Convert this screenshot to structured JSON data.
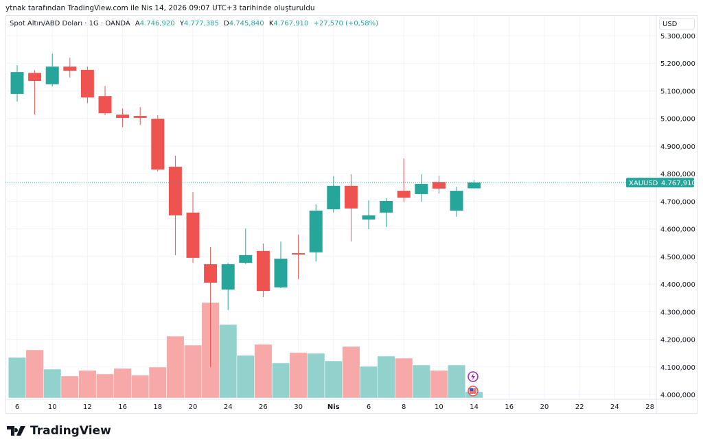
{
  "caption": "ytnak tarafından TradingView.com ile Nis 14, 2026 09:07 UTC+3 tarihinde oluşturuldu",
  "legend": {
    "symbol": "Spot Altın/ABD Doları · 1G · OANDA",
    "open_label": "A",
    "open": "4.746,920",
    "high_label": "Y",
    "high": "4.777,385",
    "low_label": "D",
    "low": "4.745,840",
    "close_label": "K",
    "close": "4.767,910",
    "change": "+27,570 (+0,58%)"
  },
  "currency": "USD",
  "price_tag": {
    "symbol": "XAUUSD",
    "value": "4.767,910",
    "price": 4767.91
  },
  "logo": "TradingView",
  "colors": {
    "up": "#26a69a",
    "down": "#ef5350",
    "vol_up": "#92d2cc",
    "vol_down": "#f7a9a7"
  },
  "chart_data": {
    "type": "candlestick",
    "title": "Spot Altın/ABD Doları · 1G · OANDA",
    "ylim": [
      3960,
      5330
    ],
    "y_ticks": [
      {
        "v": 4000,
        "l": "4.000,000"
      },
      {
        "v": 4100,
        "l": "4.100,000"
      },
      {
        "v": 4200,
        "l": "4.200,000"
      },
      {
        "v": 4300,
        "l": "4.300,000"
      },
      {
        "v": 4400,
        "l": "4.400,000"
      },
      {
        "v": 4500,
        "l": "4.500,000"
      },
      {
        "v": 4600,
        "l": "4.600,000"
      },
      {
        "v": 4700,
        "l": "4.700,000"
      },
      {
        "v": 4800,
        "l": "4.800,000"
      },
      {
        "v": 4900,
        "l": "4.900,000"
      },
      {
        "v": 5000,
        "l": "5.000,000"
      },
      {
        "v": 5100,
        "l": "5.100,000"
      },
      {
        "v": 5200,
        "l": "5.200,000"
      },
      {
        "v": 5300,
        "l": "5.300,000"
      }
    ],
    "x_ticks": [
      "6",
      "10",
      "12",
      "16",
      "18",
      "20",
      "24",
      "26",
      "30",
      "Nis",
      "6",
      "8",
      "10",
      "14",
      "16",
      "20",
      "22",
      "24",
      "28"
    ],
    "candles": [
      [
        5089,
        5193,
        5061,
        5168,
        59
      ],
      [
        5165,
        5175,
        5014,
        5136,
        70
      ],
      [
        5124,
        5235,
        5116,
        5188,
        42
      ],
      [
        5188,
        5220,
        5148,
        5173,
        32
      ],
      [
        5176,
        5188,
        5056,
        5076,
        40
      ],
      [
        5081,
        5118,
        5012,
        5019,
        35
      ],
      [
        5014,
        5036,
        4969,
        5002,
        43
      ],
      [
        5009,
        5041,
        4977,
        5002,
        33
      ],
      [
        4999,
        5012,
        4808,
        4815,
        45
      ],
      [
        4825,
        4865,
        4505,
        4649,
        90
      ],
      [
        4659,
        4733,
        4477,
        4495,
        77
      ],
      [
        4472,
        4534,
        4100,
        4405,
        139
      ],
      [
        4380,
        4477,
        4306,
        4472,
        107
      ],
      [
        4477,
        4601,
        4472,
        4505,
        62
      ],
      [
        4520,
        4547,
        4353,
        4375,
        78
      ],
      [
        4388,
        4554,
        4385,
        4492,
        51
      ],
      [
        4512,
        4579,
        4418,
        4507,
        66
      ],
      [
        4515,
        4689,
        4482,
        4666,
        65
      ],
      [
        4671,
        4791,
        4659,
        4756,
        54
      ],
      [
        4756,
        4798,
        4554,
        4674,
        75
      ],
      [
        4634,
        4703,
        4599,
        4649,
        46
      ],
      [
        4659,
        4711,
        4607,
        4701,
        61
      ],
      [
        4738,
        4855,
        4698,
        4713,
        58
      ],
      [
        4726,
        4798,
        4698,
        4763,
        48
      ],
      [
        4770,
        4793,
        4728,
        4746,
        40
      ],
      [
        4666,
        4753,
        4644,
        4738,
        48
      ],
      [
        4747,
        4777,
        4746,
        4768,
        9
      ]
    ],
    "candle_fields": [
      "open",
      "high",
      "low",
      "close",
      "relative_volume"
    ]
  }
}
